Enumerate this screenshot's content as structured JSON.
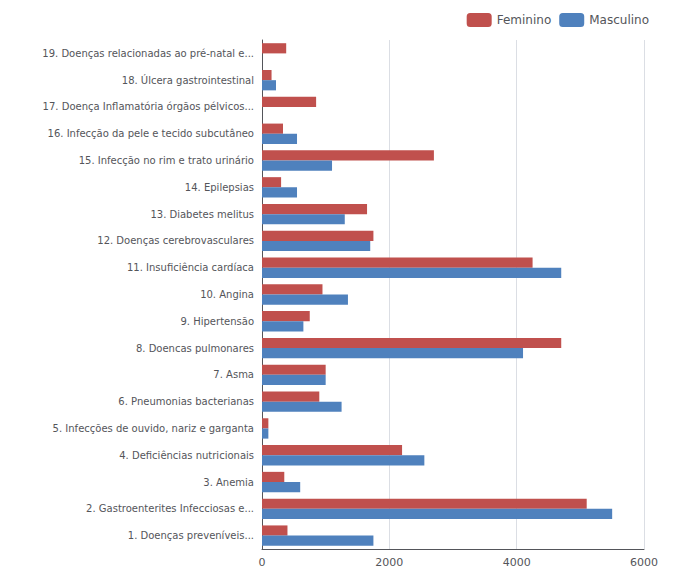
{
  "chart_data": {
    "type": "bar",
    "orientation": "horizontal",
    "categories": [
      "1. Doenças preveníveis...",
      "2. Gastroenterites Infecciosas e...",
      "3. Anemia",
      "4. Deficiências nutricionais",
      "5. Infecções de ouvido, nariz e garganta",
      "6. Pneumonias bacterianas",
      "7. Asma",
      "8. Doencas pulmonares",
      "9. Hipertensão",
      "10. Angina",
      "11. Insuficiência cardíaca",
      "12. Doenças cerebrovasculares",
      "13. Diabetes melitus",
      "14. Epilepsias",
      "15. Infecção no rim e trato urinário",
      "16. Infecção da pele e tecido subcutâneo",
      "17. Doença Inflamatória órgãos pélvicos...",
      "18. Úlcera gastrointestinal",
      "19. Doenças relacionadas ao pré-natal e..."
    ],
    "series": [
      {
        "name": "Feminino",
        "color": "#C0504D",
        "values": [
          400,
          5100,
          350,
          2200,
          100,
          900,
          1000,
          4700,
          750,
          950,
          4250,
          1750,
          1650,
          300,
          2700,
          330,
          850,
          150,
          380
        ]
      },
      {
        "name": "Masculino",
        "color": "#4F81BD",
        "values": [
          1750,
          5500,
          600,
          2550,
          100,
          1250,
          1000,
          4100,
          650,
          1350,
          4700,
          1700,
          1300,
          550,
          1100,
          550,
          0,
          220,
          0
        ]
      }
    ],
    "xlim": [
      0,
      6000
    ],
    "xticks": [
      0,
      2000,
      4000,
      6000
    ],
    "grid": true,
    "legend": "upper right"
  }
}
